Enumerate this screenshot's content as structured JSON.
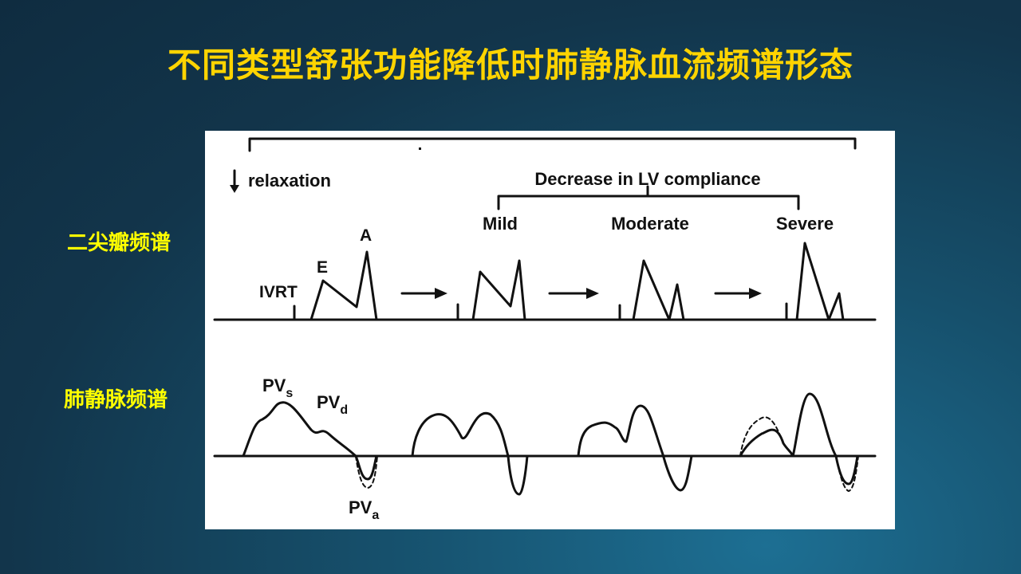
{
  "title": "不同类型舒张功能降低时肺静脉血流频谱形态",
  "labels": {
    "mitral": "二尖瓣频谱",
    "pulmonary_vein": "肺静脉频谱"
  },
  "diagram": {
    "relaxation": "relaxation",
    "decrease": "Decrease in LV compliance",
    "mild": "Mild",
    "moderate": "Moderate",
    "severe": "Severe",
    "ivrt": "IVRT",
    "e": "E",
    "a": "A",
    "pv": "PV",
    "pv_s_sub": "s",
    "pv_d_sub": "d",
    "pv_a_sub": "a"
  }
}
